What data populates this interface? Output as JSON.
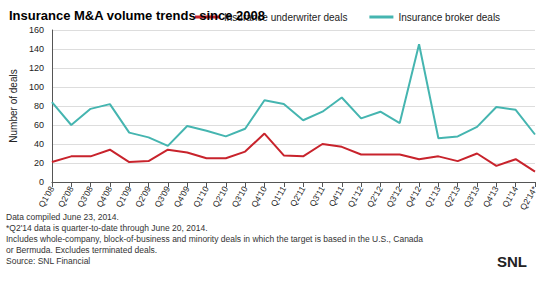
{
  "chart_data": {
    "type": "line",
    "title": "Insurance M&A volume trends since 2008",
    "y_label": "Number of deals",
    "categories": [
      "Q1'08",
      "Q2'08",
      "Q3'08",
      "Q4'08",
      "Q1'09",
      "Q2'09",
      "Q3'09",
      "Q4'09",
      "Q1'10",
      "Q2'10",
      "Q3'10",
      "Q4'10",
      "Q1'11",
      "Q2'11",
      "Q3'11",
      "Q4'11",
      "Q1'12",
      "Q2'12",
      "Q3'12",
      "Q4'12",
      "Q1'13",
      "Q2'13",
      "Q3'13",
      "Q4'13",
      "Q1'14",
      "Q2'14*"
    ],
    "series": [
      {
        "name": "Insurance underwriter deals",
        "color": "#c8232c",
        "values": [
          21,
          27,
          27,
          34,
          21,
          22,
          34,
          31,
          25,
          25,
          32,
          51,
          28,
          27,
          40,
          37,
          29,
          29,
          29,
          24,
          27,
          22,
          30,
          17,
          24,
          11
        ]
      },
      {
        "name": "Insurance broker deals",
        "color": "#45b5b0",
        "values": [
          84,
          60,
          77,
          82,
          52,
          47,
          38,
          59,
          54,
          48,
          56,
          86,
          82,
          65,
          74,
          89,
          67,
          74,
          62,
          145,
          46,
          48,
          58,
          79,
          76,
          50
        ]
      }
    ],
    "ylim": [
      0,
      160
    ],
    "yticks": [
      0,
      20,
      40,
      60,
      80,
      100,
      120,
      140,
      160
    ],
    "grid": true,
    "legend": "top",
    "notes": [
      "Data compiled June 23, 2014.",
      "*Q2'14 data is quarter-to-date through June 20, 2014.",
      "Includes whole-company, block-of-business and minority deals in which the target is based in the U.S., Canada",
      "or Bermuda. Excludes terminated deals.",
      "Source: SNL Financial"
    ],
    "logo": "SNL"
  }
}
